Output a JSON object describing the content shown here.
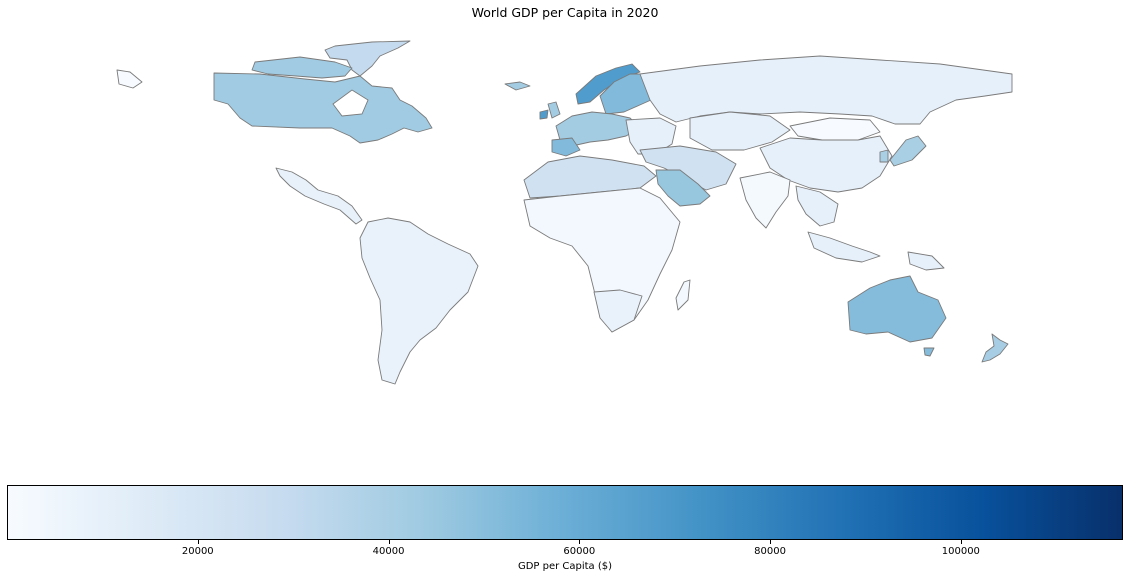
{
  "title": "World GDP per Capita in 2020",
  "colormap": {
    "name": "Blues",
    "min": 0,
    "max": 117000,
    "stops": [
      "#f7fbff",
      "#deebf7",
      "#c6dbef",
      "#9ecae1",
      "#6baed6",
      "#4292c6",
      "#2171b5",
      "#08519c",
      "#08306b"
    ]
  },
  "colorbar": {
    "label": "GDP per Capita ($)",
    "ticks": [
      {
        "value": 20000,
        "label": "20000"
      },
      {
        "value": 40000,
        "label": "40000"
      },
      {
        "value": 60000,
        "label": "60000"
      },
      {
        "value": 80000,
        "label": "80000"
      },
      {
        "value": 100000,
        "label": "100000"
      }
    ]
  },
  "map": {
    "type": "choropleth world map",
    "edge_color": "#7a7a7a",
    "note": "approximate country shading read from fill colors",
    "regions": [
      {
        "name": "canada",
        "value": 43000
      },
      {
        "name": "usa",
        "value": 0
      },
      {
        "name": "greenland",
        "value": 30000
      },
      {
        "name": "mexico",
        "value": 9000
      },
      {
        "name": "south-america",
        "value": 8000
      },
      {
        "name": "europe-west",
        "value": 42000
      },
      {
        "name": "norway",
        "value": 68000
      },
      {
        "name": "scandinavia",
        "value": 52000
      },
      {
        "name": "russia",
        "value": 10000
      },
      {
        "name": "china",
        "value": 0
      },
      {
        "name": "india",
        "value": 2000
      },
      {
        "name": "middle-east",
        "value": 23000
      },
      {
        "name": "saudi-arabia",
        "value": 46000
      },
      {
        "name": "africa",
        "value": 3000
      },
      {
        "name": "australia",
        "value": 51000
      },
      {
        "name": "new-zealand",
        "value": 41000
      },
      {
        "name": "japan",
        "value": 40000
      },
      {
        "name": "southeast-asia",
        "value": 10000
      }
    ]
  }
}
